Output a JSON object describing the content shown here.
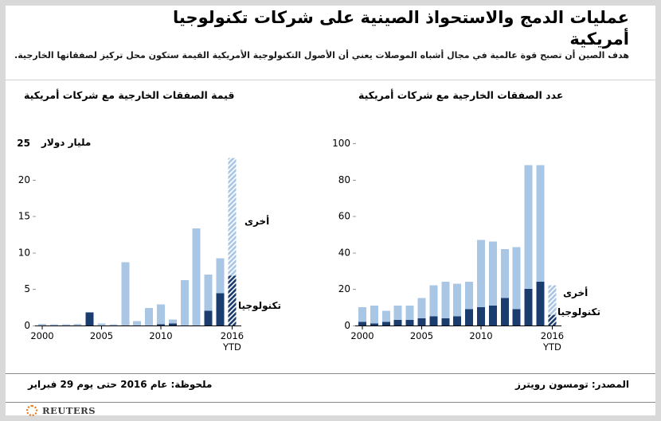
{
  "header": {
    "title_lines": [
      "عمليات الدمج والاستحواذ الصينية على شركات تكنولوجيا",
      "أمريكية"
    ],
    "subtitle": "هدف الصين أن تصبح قوة عالمية في مجال أشباه الموصلات يعني أن الأصول التكنولوجية الأمريكية القيمة ستكون محل تركيز لصفقاتها الخارجية."
  },
  "colors": {
    "tech": "#1b3c6e",
    "other": "#a9c6e4",
    "axis": "#000000",
    "logo_orange": "#e87511",
    "frame_gray": "#d9d9d9"
  },
  "chart_data": [
    {
      "type": "bar",
      "stacked": true,
      "title": "قيمة الصفقات الخارجية مع شركات أمريكية",
      "unit_label": "مليار دولار",
      "xlabel": "",
      "ylabel": "",
      "ylim": [
        0,
        25
      ],
      "yticks": [
        0,
        5,
        10,
        15,
        20
      ],
      "ytick_top": "25",
      "grid": false,
      "legend_position": "right",
      "categories": [
        "2000",
        "2001",
        "2002",
        "2003",
        "2004",
        "2005",
        "2006",
        "2007",
        "2008",
        "2009",
        "2010",
        "2011",
        "2012",
        "2013",
        "2014",
        "2015",
        "2016 YTD"
      ],
      "series": [
        {
          "name": "تكنولوجيا",
          "key": "tech",
          "values": [
            0,
            0,
            0,
            0,
            1.8,
            0,
            0,
            0,
            0,
            0,
            0.15,
            0.3,
            0,
            0,
            2,
            4.4,
            6.8
          ]
        },
        {
          "name": "أخرى",
          "key": "other",
          "values": [
            0.2,
            0.15,
            0.15,
            0.2,
            0,
            0.25,
            0.15,
            8.7,
            0.6,
            2.4,
            2.75,
            0.5,
            6.2,
            13.3,
            5,
            4.8,
            16.2
          ]
        }
      ],
      "hatched_index": 16,
      "x_ticks": [
        {
          "index": 0,
          "label": "2000"
        },
        {
          "index": 5,
          "label": "2005"
        },
        {
          "index": 10,
          "label": "2010"
        },
        {
          "index": 16,
          "label": "2016",
          "sublabel": "YTD"
        }
      ],
      "legend": [
        {
          "label": "أخرى",
          "series": "other"
        },
        {
          "label": "تكنولوجيا",
          "series": "tech"
        }
      ]
    },
    {
      "type": "bar",
      "stacked": true,
      "title": "عدد الصفقات الخارجية مع شركات أمريكية",
      "xlabel": "",
      "ylabel": "",
      "ylim": [
        0,
        100
      ],
      "yticks": [
        0,
        20,
        40,
        60,
        80,
        100
      ],
      "ytick_top": null,
      "grid": false,
      "legend_position": "right",
      "categories": [
        "2000",
        "2001",
        "2002",
        "2003",
        "2004",
        "2005",
        "2006",
        "2007",
        "2008",
        "2009",
        "2010",
        "2011",
        "2012",
        "2013",
        "2014",
        "2015",
        "2016 YTD"
      ],
      "series": [
        {
          "name": "تكنولوجيا",
          "key": "tech",
          "values": [
            2,
            1,
            2,
            3,
            3,
            4,
            5,
            4,
            5,
            9,
            10,
            11,
            15,
            9,
            20,
            24,
            6
          ]
        },
        {
          "name": "أخرى",
          "key": "other",
          "values": [
            8,
            10,
            6,
            8,
            8,
            11,
            17,
            20,
            18,
            15,
            37,
            35,
            27,
            34,
            68,
            64,
            16
          ]
        }
      ],
      "hatched_index": 16,
      "x_ticks": [
        {
          "index": 0,
          "label": "2000"
        },
        {
          "index": 5,
          "label": "2005"
        },
        {
          "index": 10,
          "label": "2010"
        },
        {
          "index": 16,
          "label": "2016",
          "sublabel": "YTD"
        }
      ],
      "legend": [
        {
          "label": "أخرى",
          "series": "other"
        },
        {
          "label": "تكنولوجيا",
          "series": "tech"
        }
      ]
    }
  ],
  "footer": {
    "note": "ملحوظة: عام 2016 حتى يوم 29 فبراير",
    "source": "المصدر: تومسون رويترز"
  },
  "brand": {
    "wordmark": "REUTERS"
  }
}
